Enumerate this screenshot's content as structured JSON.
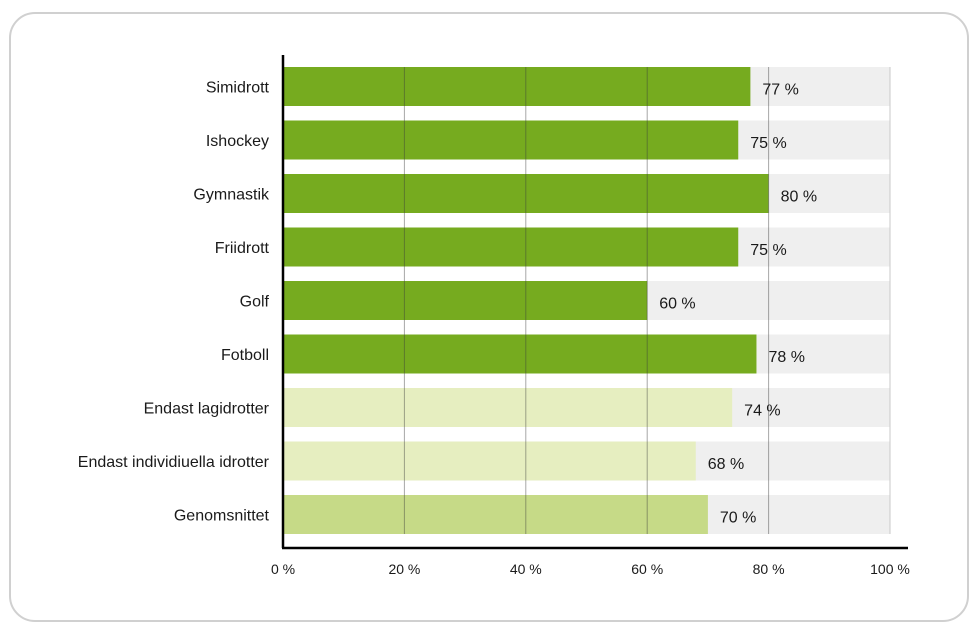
{
  "chart_data": {
    "type": "bar",
    "orientation": "horizontal",
    "categories": [
      "Simidrott",
      "Ishockey",
      "Gymnastik",
      "Friidrott",
      "Golf",
      "Fotboll",
      "Endast lagidrotter",
      "Endast individiuella idrotter",
      "Genomsnittet"
    ],
    "values": [
      77,
      75,
      80,
      75,
      60,
      78,
      74,
      68,
      70
    ],
    "value_labels": [
      "77 %",
      "75 %",
      "80 %",
      "75 %",
      "60 %",
      "78 %",
      "74 %",
      "68 %",
      "70 %"
    ],
    "bar_colors": [
      "#76ab1f",
      "#76ab1f",
      "#76ab1f",
      "#76ab1f",
      "#76ab1f",
      "#76ab1f",
      "#e6eec0",
      "#e6eec0",
      "#c6da87"
    ],
    "track_color": "#efefef",
    "xlim": [
      0,
      100
    ],
    "xticks": [
      0,
      20,
      40,
      60,
      80,
      100
    ],
    "xtick_labels": [
      "0 %",
      "20 %",
      "40 %",
      "60 %",
      "80 %",
      "100 %"
    ],
    "grid": true,
    "title": "",
    "xlabel": "",
    "ylabel": ""
  }
}
